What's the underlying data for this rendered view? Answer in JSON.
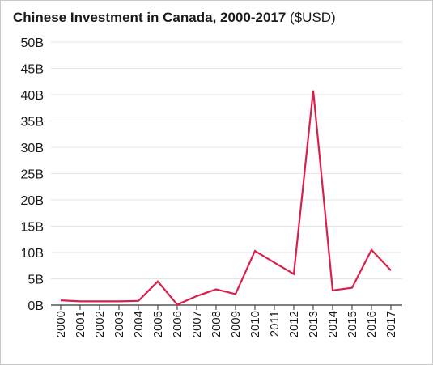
{
  "chart_data": {
    "type": "line",
    "title": "Chinese Investment in Canada, 2000-2017",
    "title_unit": "($USD)",
    "xlabel": "",
    "ylabel": "",
    "ylim": [
      0,
      50
    ],
    "y_ticks": [
      {
        "value": 0,
        "label": "0B"
      },
      {
        "value": 5,
        "label": "5B"
      },
      {
        "value": 10,
        "label": "10B"
      },
      {
        "value": 15,
        "label": "15B"
      },
      {
        "value": 20,
        "label": "20B"
      },
      {
        "value": 25,
        "label": "25B"
      },
      {
        "value": 30,
        "label": "30B"
      },
      {
        "value": 35,
        "label": "35B"
      },
      {
        "value": 40,
        "label": "40B"
      },
      {
        "value": 45,
        "label": "45B"
      },
      {
        "value": 50,
        "label": "50B"
      }
    ],
    "categories": [
      "2000",
      "2001",
      "2002",
      "2003",
      "2004",
      "2005",
      "2006",
      "2007",
      "2008",
      "2009",
      "2010",
      "2011",
      "2012",
      "2013",
      "2014",
      "2015",
      "2016",
      "2017"
    ],
    "series": [
      {
        "values": [
          0.9,
          0.7,
          0.7,
          0.7,
          0.8,
          4.5,
          0.1,
          1.7,
          3.0,
          2.1,
          10.3,
          8.1,
          5.9,
          40.8,
          2.8,
          3.3,
          10.5,
          6.6
        ]
      }
    ],
    "grid": true,
    "colors": {
      "line": "#d8204a",
      "grid": "#e4e4e4",
      "axis": "#333333"
    }
  }
}
